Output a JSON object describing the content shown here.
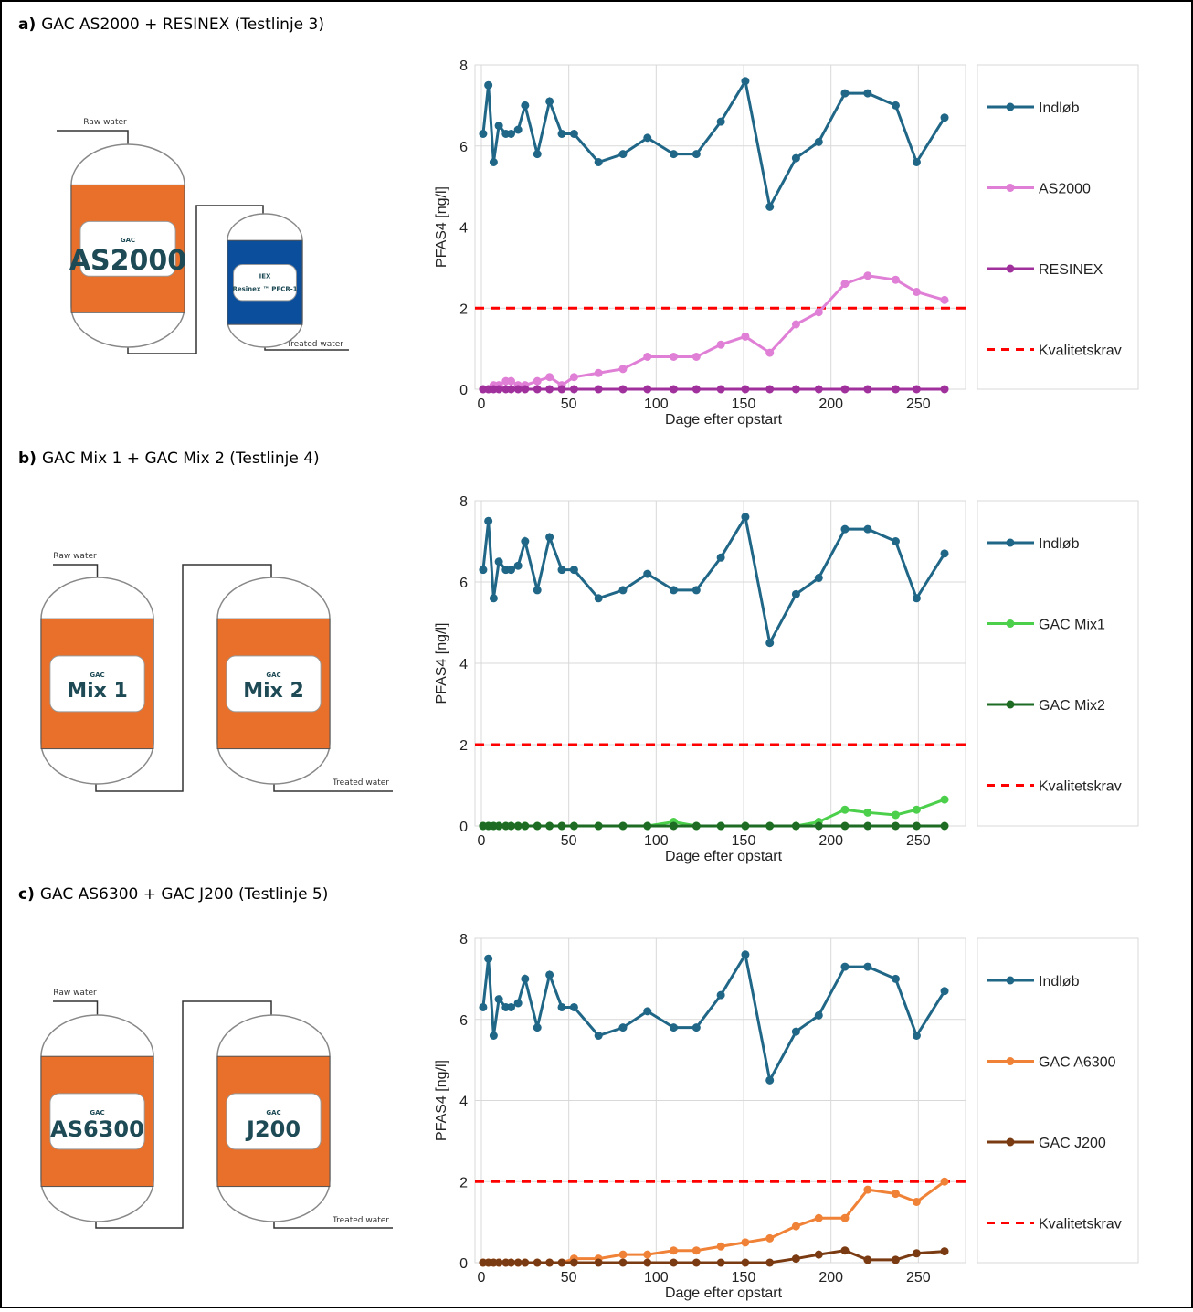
{
  "chart_data": [
    {
      "type": "line",
      "label": "a)",
      "title": "GAC AS2000 + RESINEX (Testlinje 3)",
      "x_label": "Dage efter opstart",
      "y_label": "PFAS4 [ng/l]",
      "x": [
        1,
        4,
        7,
        10,
        14,
        17,
        21,
        25,
        32,
        39,
        46,
        53,
        67,
        81,
        95,
        110,
        123,
        137,
        151,
        165,
        180,
        193,
        208,
        221,
        237,
        249,
        265
      ],
      "xlim": [
        0,
        277
      ],
      "xticks": [
        0,
        50,
        100,
        150,
        200,
        250
      ],
      "ylim": [
        0,
        8
      ],
      "yticks": [
        0,
        2,
        4,
        6,
        8
      ],
      "grid": true,
      "series": [
        {
          "name": "Indløb",
          "color": "#1f6687",
          "values": [
            6.3,
            7.5,
            5.6,
            6.5,
            6.3,
            6.3,
            6.4,
            7.0,
            5.8,
            7.1,
            6.3,
            6.3,
            5.6,
            5.8,
            6.2,
            5.8,
            5.8,
            6.6,
            7.6,
            4.5,
            5.7,
            6.1,
            7.3,
            7.3,
            7.0,
            5.6,
            6.7
          ]
        },
        {
          "name": "AS2000",
          "color": "#e07fd6",
          "values": [
            0,
            0,
            0.1,
            0.1,
            0.2,
            0.2,
            0.1,
            0.1,
            0.2,
            0.3,
            0.1,
            0.3,
            0.4,
            0.5,
            0.8,
            0.8,
            0.8,
            1.1,
            1.3,
            0.9,
            1.6,
            1.9,
            2.6,
            2.8,
            2.7,
            2.4,
            2.2
          ]
        },
        {
          "name": "RESINEX",
          "color": "#a0309c",
          "values": [
            0,
            0,
            0,
            0,
            0,
            0,
            0,
            0,
            0,
            0,
            0,
            0,
            0,
            0,
            0,
            0,
            0,
            0,
            0,
            0,
            0,
            0,
            0,
            0,
            0,
            0,
            0
          ]
        }
      ],
      "hline": {
        "name": "Kvalitetskrav",
        "value": 2,
        "color": "#ff0000"
      }
    },
    {
      "type": "line",
      "label": "b)",
      "title": "GAC Mix 1 + GAC Mix 2 (Testlinje 4)",
      "x_label": "Dage efter opstart",
      "y_label": "PFAS4 [ng/l]",
      "x": [
        1,
        4,
        7,
        10,
        14,
        17,
        21,
        25,
        32,
        39,
        46,
        53,
        67,
        81,
        95,
        110,
        123,
        137,
        151,
        165,
        180,
        193,
        208,
        221,
        237,
        249,
        265
      ],
      "xlim": [
        0,
        277
      ],
      "xticks": [
        0,
        50,
        100,
        150,
        200,
        250
      ],
      "ylim": [
        0,
        8
      ],
      "yticks": [
        0,
        2,
        4,
        6,
        8
      ],
      "grid": true,
      "series": [
        {
          "name": "Indløb",
          "color": "#1f6687",
          "values": [
            6.3,
            7.5,
            5.6,
            6.5,
            6.3,
            6.3,
            6.4,
            7.0,
            5.8,
            7.1,
            6.3,
            6.3,
            5.6,
            5.8,
            6.2,
            5.8,
            5.8,
            6.6,
            7.6,
            4.5,
            5.7,
            6.1,
            7.3,
            7.3,
            7.0,
            5.6,
            6.7
          ]
        },
        {
          "name": "GAC Mix1",
          "color": "#4cd04c",
          "values": [
            0,
            0,
            0,
            0,
            0,
            0,
            0,
            0,
            0,
            0,
            0,
            0,
            0,
            0,
            0,
            0.1,
            0,
            0,
            0,
            0,
            0,
            0.1,
            0.4,
            0.33,
            0.27,
            0.4,
            0.65
          ]
        },
        {
          "name": "GAC Mix2",
          "color": "#1e6b24",
          "values": [
            0,
            0,
            0,
            0,
            0,
            0,
            0,
            0,
            0,
            0,
            0,
            0,
            0,
            0,
            0,
            0,
            0,
            0,
            0,
            0,
            0,
            0,
            0,
            0,
            0,
            0,
            0
          ]
        }
      ],
      "hline": {
        "name": "Kvalitetskrav",
        "value": 2,
        "color": "#ff0000"
      }
    },
    {
      "type": "line",
      "label": "c)",
      "title": "GAC AS6300 + GAC J200 (Testlinje 5)",
      "x_label": "Dage efter opstart",
      "y_label": "PFAS4 [ng/l]",
      "x": [
        1,
        4,
        7,
        10,
        14,
        17,
        21,
        25,
        32,
        39,
        46,
        53,
        67,
        81,
        95,
        110,
        123,
        137,
        151,
        165,
        180,
        193,
        208,
        221,
        237,
        249,
        265
      ],
      "xlim": [
        0,
        277
      ],
      "xticks": [
        0,
        50,
        100,
        150,
        200,
        250
      ],
      "ylim": [
        0,
        8
      ],
      "yticks": [
        0,
        2,
        4,
        6,
        8
      ],
      "grid": true,
      "series": [
        {
          "name": "Indløb",
          "color": "#1f6687",
          "values": [
            6.3,
            7.5,
            5.6,
            6.5,
            6.3,
            6.3,
            6.4,
            7.0,
            5.8,
            7.1,
            6.3,
            6.3,
            5.6,
            5.8,
            6.2,
            5.8,
            5.8,
            6.6,
            7.6,
            4.5,
            5.7,
            6.1,
            7.3,
            7.3,
            7.0,
            5.6,
            6.7
          ]
        },
        {
          "name": "GAC A6300",
          "color": "#f08237",
          "values": [
            0,
            0,
            0,
            0,
            0,
            0,
            0,
            0,
            0,
            0,
            0,
            0.1,
            0.1,
            0.2,
            0.2,
            0.3,
            0.3,
            0.4,
            0.5,
            0.6,
            0.9,
            1.1,
            1.1,
            1.8,
            1.7,
            1.5,
            2.0
          ]
        },
        {
          "name": "GAC J200",
          "color": "#7a3b12",
          "values": [
            0,
            0,
            0,
            0,
            0,
            0,
            0,
            0,
            0,
            0,
            0,
            0,
            0,
            0,
            0,
            0,
            0,
            0,
            0,
            0,
            0.1,
            0.2,
            0.3,
            0.07,
            0.07,
            0.23,
            0.28
          ]
        }
      ],
      "hline": {
        "name": "Kvalitetskrav",
        "value": 2,
        "color": "#ff0000"
      }
    }
  ],
  "diagrams": [
    {
      "inlet": "Raw water",
      "outlet": "Treated water",
      "vessels": [
        {
          "top": "GAC",
          "name": "AS2000",
          "band": "#e8702a"
        },
        {
          "top": "IEX",
          "name": "Resinex ™ PFCR-1",
          "band": "#0b4f9c"
        }
      ]
    },
    {
      "inlet": "Raw water",
      "outlet": "Treated water",
      "vessels": [
        {
          "top": "GAC",
          "name": "Mix 1",
          "band": "#e8702a"
        },
        {
          "top": "GAC",
          "name": "Mix 2",
          "band": "#e8702a"
        }
      ]
    },
    {
      "inlet": "Raw water",
      "outlet": "Treated water",
      "vessels": [
        {
          "top": "GAC",
          "name": "AS6300",
          "band": "#e8702a"
        },
        {
          "top": "GAC",
          "name": "J200",
          "band": "#e8702a"
        }
      ]
    }
  ]
}
